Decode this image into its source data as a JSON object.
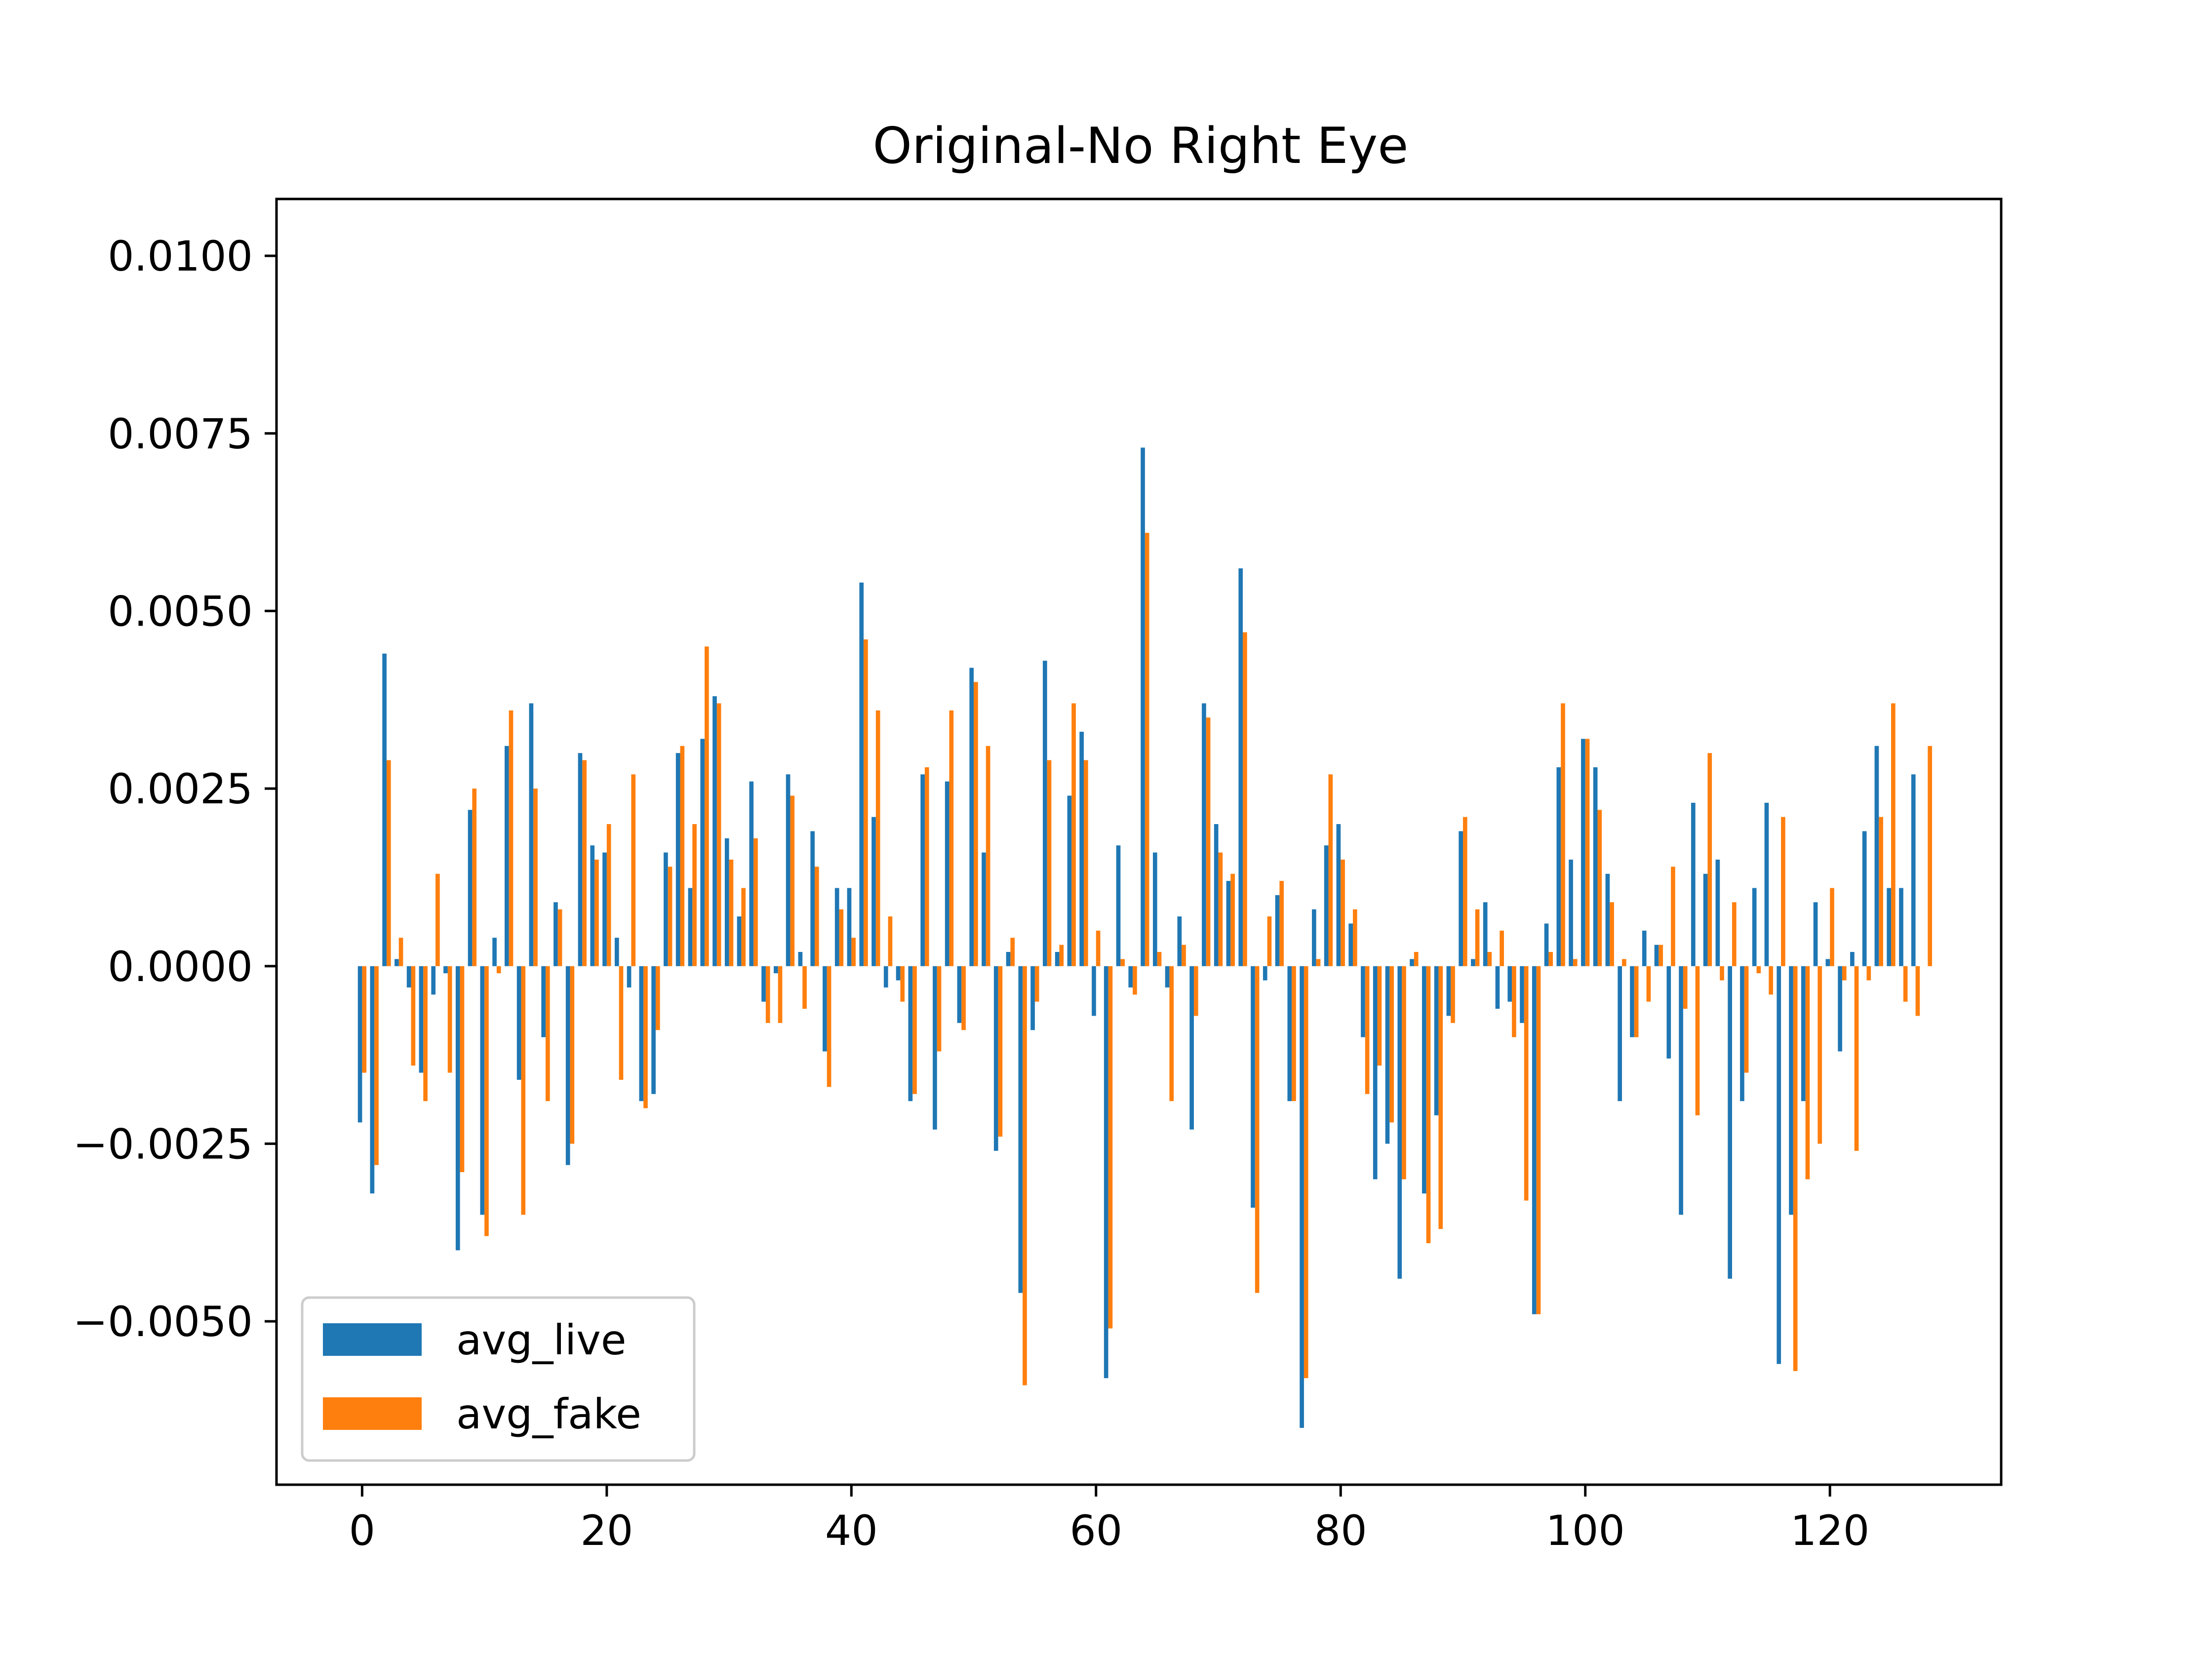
{
  "chart_data": {
    "type": "bar",
    "title": "Original-No Right Eye",
    "xlabel": "",
    "ylabel": "",
    "xlim": [
      -7,
      134
    ],
    "ylim": [
      -0.0073,
      0.0108
    ],
    "x_ticks": [
      0,
      20,
      40,
      60,
      80,
      100,
      120
    ],
    "x_tick_labels": [
      "0",
      "20",
      "40",
      "60",
      "80",
      "100",
      "120"
    ],
    "y_ticks": [
      -0.005,
      -0.0025,
      0.0,
      0.0025,
      0.005,
      0.0075,
      0.01
    ],
    "y_tick_labels": [
      "−0.0050",
      "−0.0025",
      "0.0000",
      "0.0025",
      "0.0050",
      "0.0075",
      "0.0100"
    ],
    "legend": {
      "position": "lower-left"
    },
    "grid": false,
    "series": [
      {
        "name": "avg_live",
        "color": "#1f77b4",
        "values": [
          -0.0022,
          -0.0032,
          0.0044,
          0.0001,
          -0.0003,
          -0.0015,
          -0.0004,
          -0.0001,
          -0.004,
          0.0022,
          -0.0035,
          0.0004,
          0.0031,
          -0.0016,
          0.0037,
          -0.001,
          0.0009,
          -0.0028,
          0.003,
          0.0017,
          0.0016,
          0.0004,
          -0.0003,
          -0.0019,
          -0.0018,
          0.0016,
          0.003,
          0.0011,
          0.0032,
          0.0038,
          0.0018,
          0.0007,
          0.0026,
          -0.0005,
          -0.0001,
          0.0027,
          0.0002,
          0.0019,
          -0.0012,
          0.0011,
          0.0011,
          0.0054,
          0.0021,
          -0.0003,
          -0.0002,
          -0.0019,
          0.0027,
          -0.0023,
          0.0026,
          -0.0008,
          0.0042,
          0.0016,
          -0.0026,
          0.0002,
          -0.0046,
          -0.0009,
          0.0043,
          0.0002,
          0.0024,
          0.0033,
          -0.0007,
          -0.0058,
          0.0017,
          -0.0003,
          0.0073,
          0.0016,
          -0.0003,
          0.0007,
          -0.0023,
          0.0037,
          0.002,
          0.0012,
          0.0056,
          -0.0034,
          -0.0002,
          0.001,
          -0.0019,
          -0.0065,
          0.0008,
          0.0017,
          0.002,
          0.0006,
          -0.001,
          -0.003,
          -0.0025,
          -0.0044,
          0.0001,
          -0.0032,
          -0.0021,
          -0.0007,
          0.0019,
          0.0001,
          0.0009,
          -0.0006,
          -0.0005,
          -0.0008,
          -0.0049,
          0.0006,
          0.0028,
          0.0015,
          0.0032,
          0.0028,
          0.0013,
          -0.0019,
          -0.001,
          0.0005,
          0.0003,
          -0.0013,
          -0.0035,
          0.0023,
          0.0013,
          0.0015,
          -0.0044,
          -0.0019,
          0.0011,
          0.0023,
          -0.0056,
          -0.0035,
          -0.0019,
          0.0009,
          0.0001,
          -0.0012,
          0.0002,
          0.0019,
          0.0031,
          0.0011,
          0.0011,
          0.0027
        ]
      },
      {
        "name": "avg_fake",
        "color": "#ff7f0e",
        "values": [
          -0.0015,
          -0.0028,
          0.0029,
          0.0004,
          -0.0014,
          -0.0019,
          0.0013,
          -0.0015,
          -0.0029,
          0.0025,
          -0.0038,
          -0.0001,
          0.0036,
          -0.0035,
          0.0025,
          -0.0019,
          0.0008,
          -0.0025,
          0.0029,
          0.0015,
          0.002,
          -0.0016,
          0.0027,
          -0.002,
          -0.0009,
          0.0014,
          0.0031,
          0.002,
          0.0045,
          0.0037,
          0.0015,
          0.0011,
          0.0018,
          -0.0008,
          -0.0008,
          0.0024,
          -0.0006,
          0.0014,
          -0.0017,
          0.0008,
          0.0004,
          0.0046,
          0.0036,
          0.0007,
          -0.0005,
          -0.0018,
          0.0028,
          -0.0012,
          0.0036,
          -0.0009,
          0.004,
          0.0031,
          -0.0024,
          0.0004,
          -0.0059,
          -0.0005,
          0.0029,
          0.0003,
          0.0037,
          0.0029,
          0.0005,
          -0.0051,
          0.0001,
          -0.0004,
          0.0061,
          0.0002,
          -0.0019,
          0.0003,
          -0.0007,
          0.0035,
          0.0016,
          0.0013,
          0.0047,
          -0.0046,
          0.0007,
          0.0012,
          -0.0019,
          -0.0058,
          0.0001,
          0.0027,
          0.0015,
          0.0008,
          -0.0018,
          -0.0014,
          -0.0022,
          -0.003,
          0.0002,
          -0.0039,
          -0.0037,
          -0.0008,
          0.0021,
          0.0008,
          0.0002,
          0.0005,
          -0.001,
          -0.0033,
          -0.0049,
          0.0002,
          0.0037,
          0.0001,
          0.0032,
          0.0022,
          0.0009,
          0.0001,
          -0.001,
          -0.0005,
          0.0003,
          0.0014,
          -0.0006,
          -0.0021,
          0.003,
          -0.0002,
          0.0009,
          -0.0015,
          -0.0001,
          -0.0004,
          0.0021,
          -0.0057,
          -0.003,
          -0.0025,
          0.0011,
          -0.0002,
          -0.0026,
          -0.0002,
          0.0021,
          0.0037,
          -0.0005,
          -0.0007,
          0.0031
        ]
      }
    ]
  }
}
